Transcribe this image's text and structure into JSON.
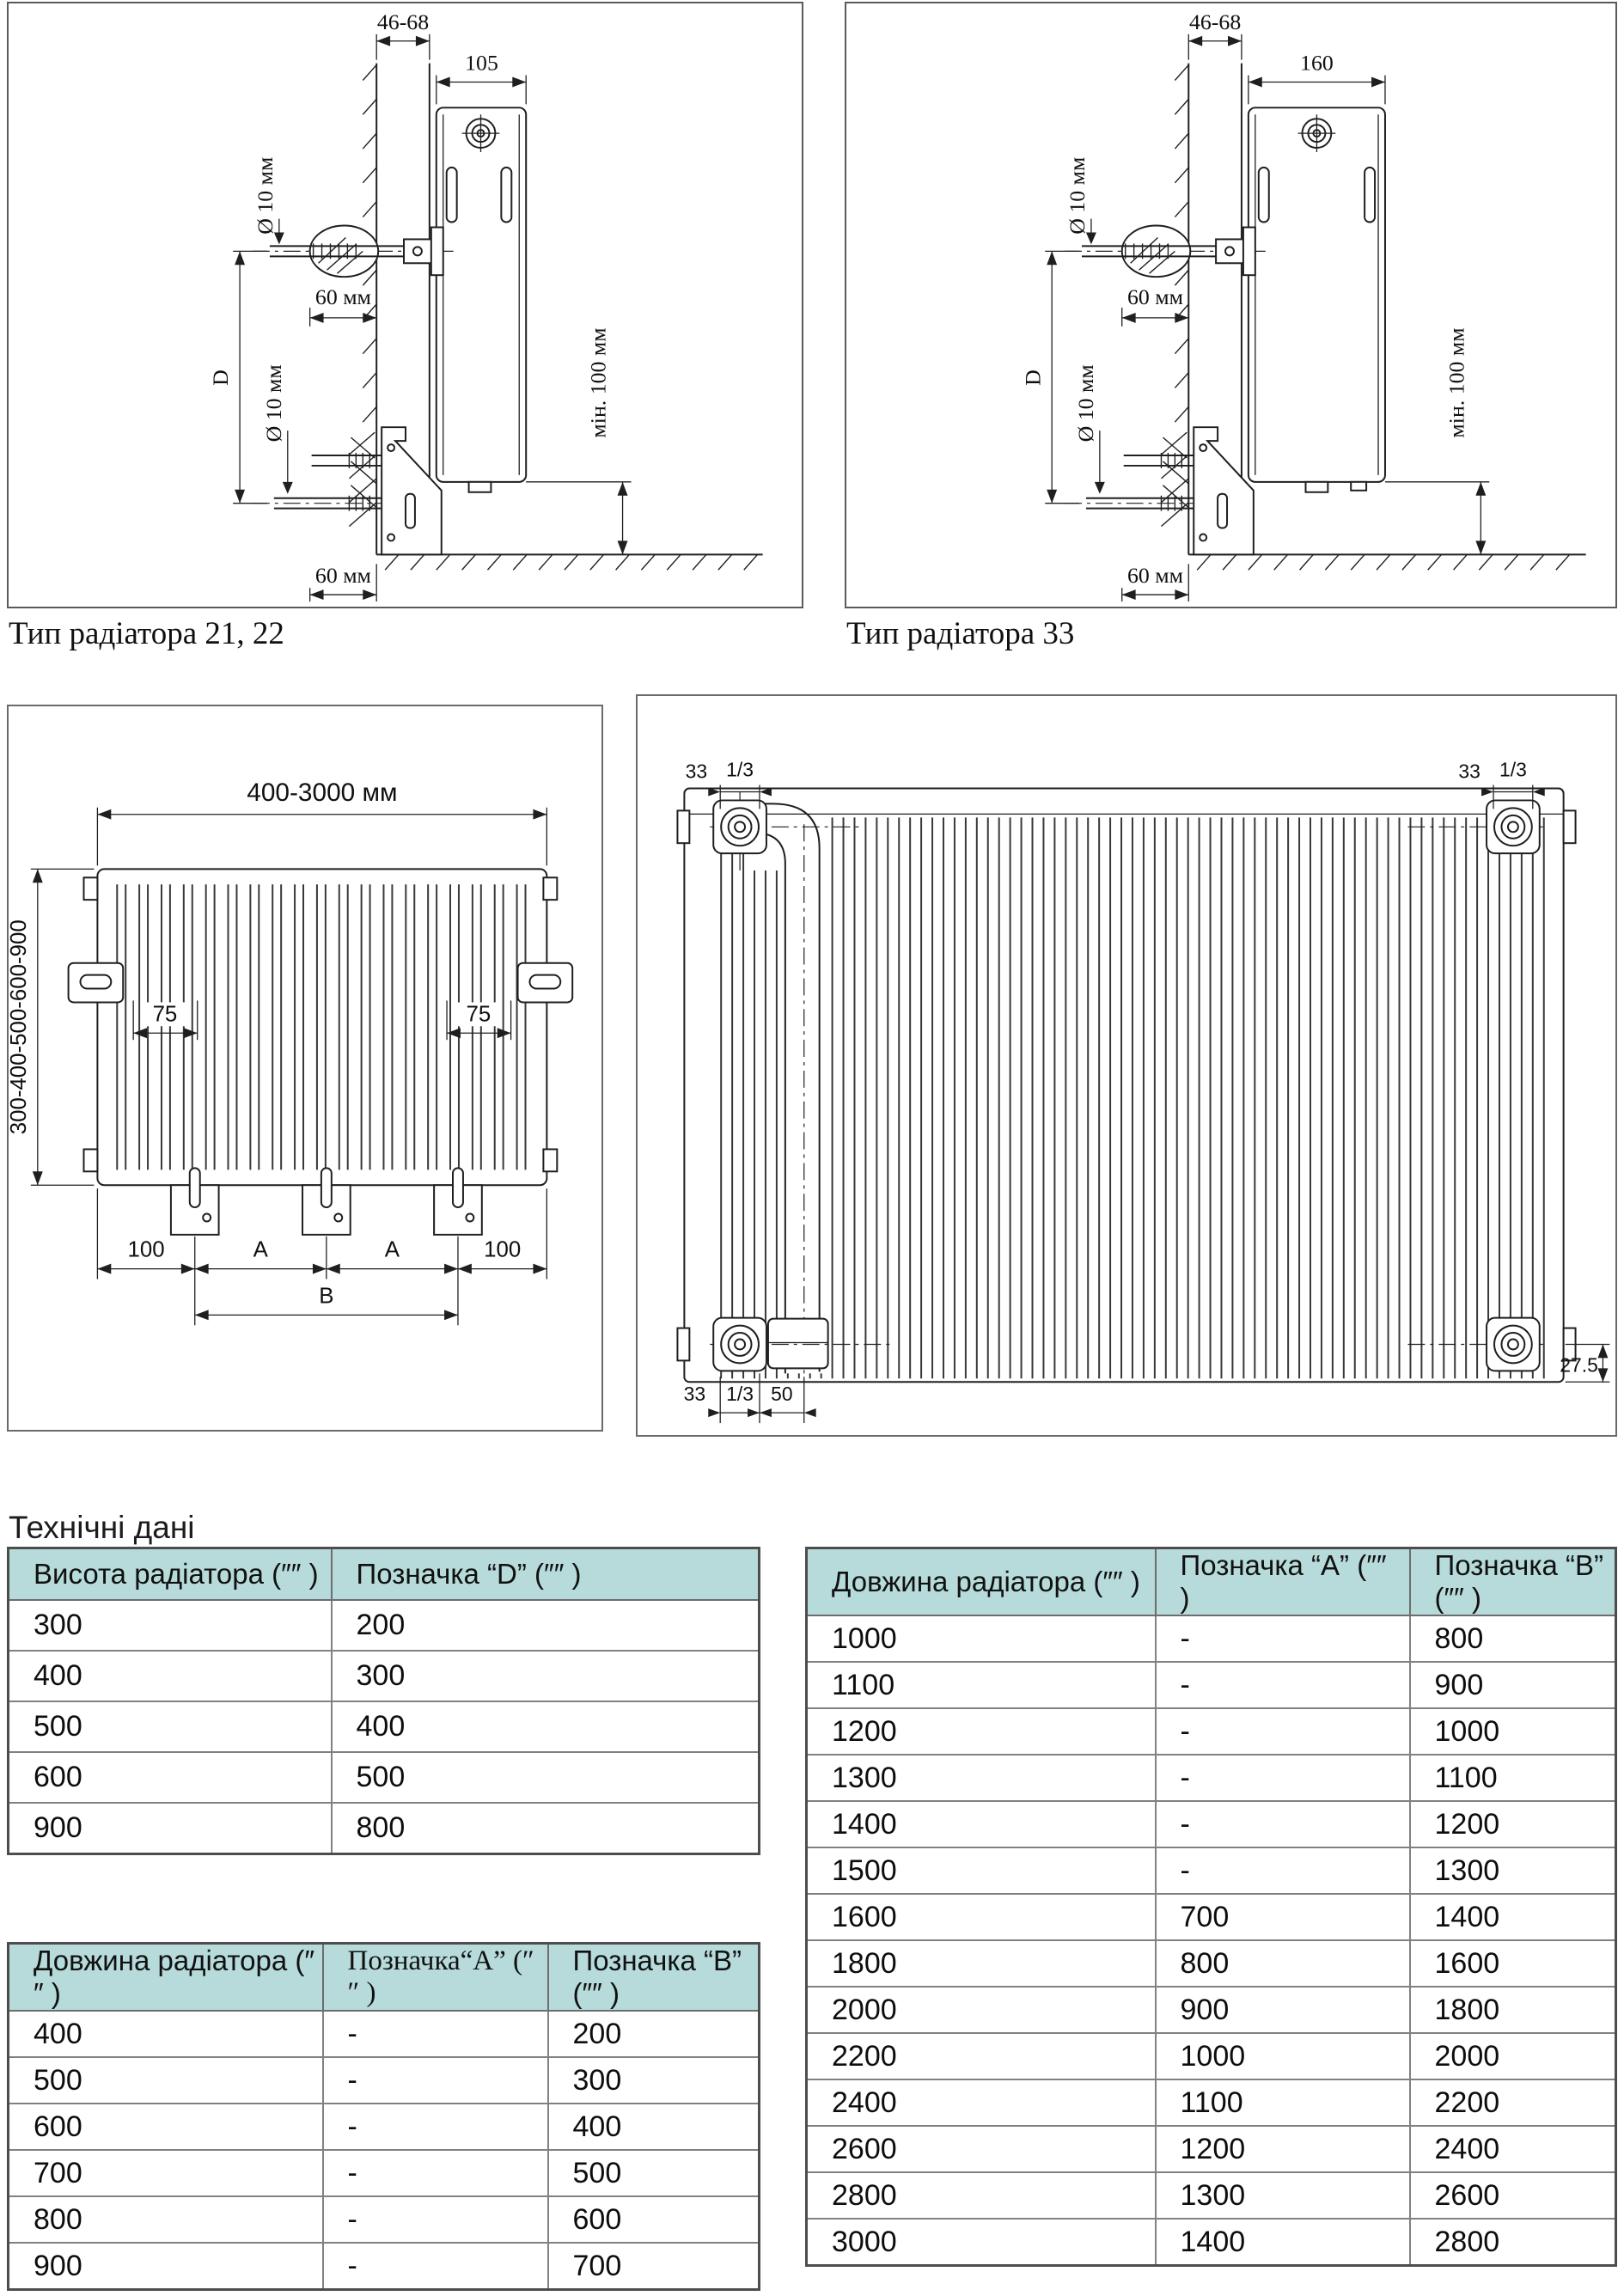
{
  "page": {
    "heading": "Технічні дані",
    "background": "#ffffff"
  },
  "colors": {
    "table_header_bg": "#b6dbda",
    "table_border": "#6d6d6d",
    "line": "#1f1f1f"
  },
  "figures": {
    "side_view_type_21_22": {
      "caption": "Тип радіатора 21, 22",
      "dims": {
        "wall_offset": "46-68",
        "radiator_depth": "105",
        "anchor_diameter_top": "Ø 10 мм",
        "anchor_depth_top": "60 мм",
        "bracket_spacing": "D",
        "anchor_diameter_bottom": "Ø 10 мм",
        "anchor_depth_bottom": "60 мм",
        "floor_clearance": "мін. 100 мм"
      }
    },
    "side_view_type_33": {
      "caption": "Тип радіатора 33",
      "dims": {
        "wall_offset": "46-68",
        "radiator_depth": "160",
        "anchor_diameter_top": "Ø 10 мм",
        "anchor_depth_top": "60 мм",
        "bracket_spacing": "D",
        "anchor_diameter_bottom": "Ø 10 мм",
        "anchor_depth_bottom": "60 мм",
        "floor_clearance": "мін. 100 мм"
      }
    },
    "front_view": {
      "dims": {
        "length_range": "400-3000 мм",
        "height_range": "300-400-500-600-900",
        "bracket_inset_left": "75",
        "bracket_inset_right": "75",
        "edge_offset_left": "100",
        "span_a_left": "A",
        "span_a_right": "A",
        "edge_offset_right": "100",
        "span_b": "B"
      }
    },
    "rear_view": {
      "dims": {
        "top_left_offset": "33",
        "top_left_thread": "1/3",
        "top_right_offset": "33",
        "top_right_thread": "1/3",
        "bottom_left_offset": "33",
        "bottom_left_thread": "1/3",
        "bottom_left_pipe_offset": "50",
        "bottom_right_offset": "27.5"
      }
    }
  },
  "tables": {
    "height": {
      "headers": [
        "Висота радіатора (″″ )",
        "Позначка “D” (″″ )"
      ],
      "rows": [
        [
          "300",
          "200"
        ],
        [
          "400",
          "300"
        ],
        [
          "500",
          "400"
        ],
        [
          "600",
          "500"
        ],
        [
          "900",
          "800"
        ]
      ]
    },
    "length_small": {
      "headers": [
        "Довжина радіатора (″″ )",
        "Позначка“A” (″″ )",
        "Позначка “B” (″″ )"
      ],
      "rows": [
        [
          "400",
          "-",
          "200"
        ],
        [
          "500",
          "-",
          "300"
        ],
        [
          "600",
          "-",
          "400"
        ],
        [
          "700",
          "-",
          "500"
        ],
        [
          "800",
          "-",
          "600"
        ],
        [
          "900",
          "-",
          "700"
        ]
      ]
    },
    "length_large": {
      "headers": [
        "Довжина радіатора (″″ )",
        "Позначка “A” (″″ )",
        "Позначка “B” (″″ )"
      ],
      "rows": [
        [
          "1000",
          "-",
          "800"
        ],
        [
          "1100",
          "-",
          "900"
        ],
        [
          "1200",
          "-",
          "1000"
        ],
        [
          "1300",
          "-",
          "1100"
        ],
        [
          "1400",
          "-",
          "1200"
        ],
        [
          "1500",
          "-",
          "1300"
        ],
        [
          "1600",
          "700",
          "1400"
        ],
        [
          "1800",
          "800",
          "1600"
        ],
        [
          "2000",
          "900",
          "1800"
        ],
        [
          "2200",
          "1000",
          "2000"
        ],
        [
          "2400",
          "1100",
          "2200"
        ],
        [
          "2600",
          "1200",
          "2400"
        ],
        [
          "2800",
          "1300",
          "2600"
        ],
        [
          "3000",
          "1400",
          "2800"
        ]
      ]
    }
  }
}
